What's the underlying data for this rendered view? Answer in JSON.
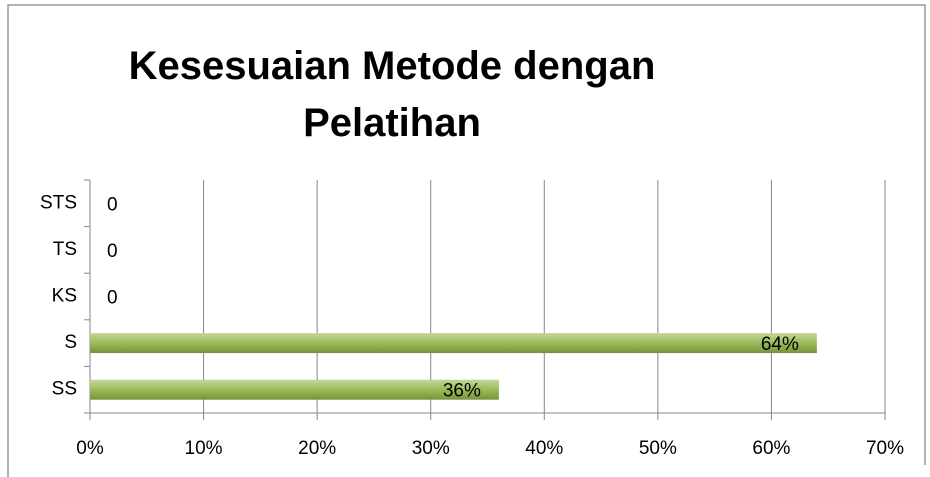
{
  "chart_data": {
    "type": "hbar",
    "title": "Kesesuaian Metode dengan Pelatihan",
    "categories": [
      "SS",
      "S",
      "KS",
      "TS",
      "STS"
    ],
    "values": [
      36,
      64,
      0,
      0,
      0
    ],
    "value_labels": [
      "36%",
      "64%",
      "0",
      "0",
      "0"
    ],
    "color": "#9bbb59",
    "xlim": [
      0,
      70
    ],
    "xticks": [
      {
        "value": 0,
        "label": "0%"
      },
      {
        "value": 10,
        "label": "10%"
      },
      {
        "value": 20,
        "label": "20%"
      },
      {
        "value": 30,
        "label": "30%"
      },
      {
        "value": 40,
        "label": "40%"
      },
      {
        "value": 50,
        "label": "50%"
      },
      {
        "value": 60,
        "label": "60%"
      },
      {
        "value": 70,
        "label": "70%"
      }
    ],
    "grid": true
  }
}
